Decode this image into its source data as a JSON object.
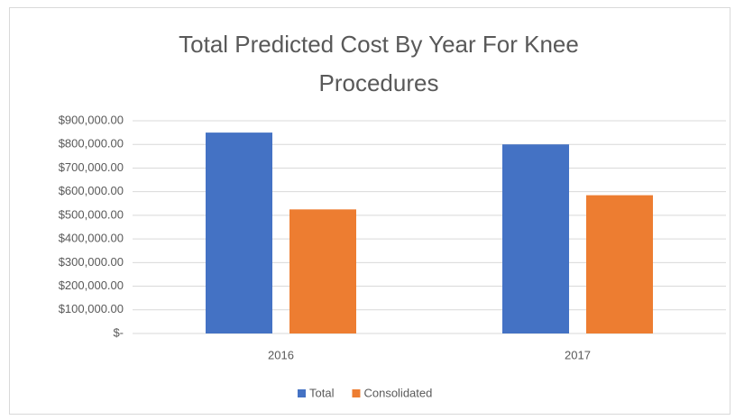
{
  "chart_data": {
    "type": "bar",
    "title": "Total Predicted Cost By Year For Knee Procedures",
    "categories": [
      "2016",
      "2017"
    ],
    "series": [
      {
        "name": "Total",
        "color": "#4472c4",
        "values": [
          850000,
          800000
        ]
      },
      {
        "name": "Consolidated",
        "color": "#ed7d31",
        "values": [
          525000,
          585000
        ]
      }
    ],
    "ylim": [
      0,
      900000
    ],
    "yticks": [
      {
        "value": 0,
        "label": "$-"
      },
      {
        "value": 100000,
        "label": "$100,000.00"
      },
      {
        "value": 200000,
        "label": "$200,000.00"
      },
      {
        "value": 300000,
        "label": "$300,000.00"
      },
      {
        "value": 400000,
        "label": "$400,000.00"
      },
      {
        "value": 500000,
        "label": "$500,000.00"
      },
      {
        "value": 600000,
        "label": "$600,000.00"
      },
      {
        "value": 700000,
        "label": "$700,000.00"
      },
      {
        "value": 800000,
        "label": "$800,000.00"
      },
      {
        "value": 900000,
        "label": "$900,000.00"
      }
    ],
    "grid": true,
    "legend": "bottom"
  }
}
